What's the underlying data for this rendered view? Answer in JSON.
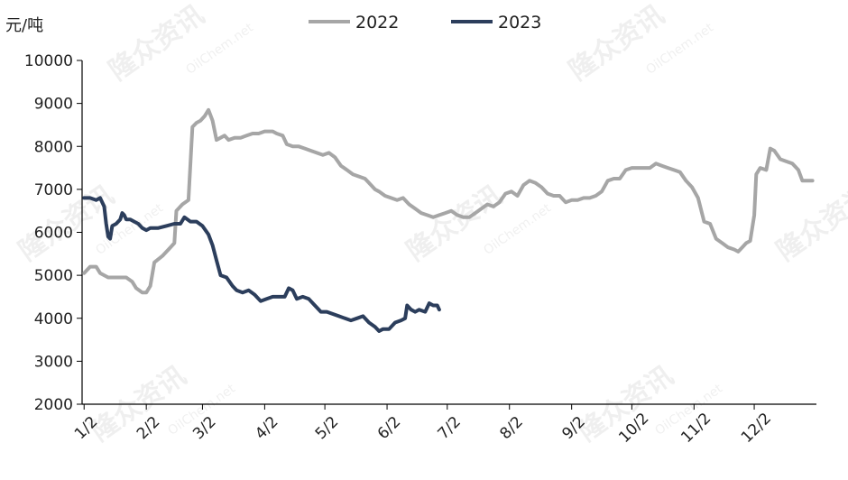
{
  "chart_data": {
    "type": "line",
    "ylabel": "元/吨",
    "ylim": [
      2000,
      10000
    ],
    "yticks": [
      2000,
      3000,
      4000,
      5000,
      6000,
      7000,
      8000,
      9000,
      10000
    ],
    "xlim": [
      0,
      366
    ],
    "xticks": [
      {
        "label": "1/2",
        "day": 1
      },
      {
        "label": "2/2",
        "day": 32
      },
      {
        "label": "3/2",
        "day": 60
      },
      {
        "label": "4/2",
        "day": 91
      },
      {
        "label": "5/2",
        "day": 121
      },
      {
        "label": "6/2",
        "day": 152
      },
      {
        "label": "7/2",
        "day": 182
      },
      {
        "label": "8/2",
        "day": 213
      },
      {
        "label": "9/2",
        "day": 244
      },
      {
        "label": "10/2",
        "day": 274
      },
      {
        "label": "11/2",
        "day": 305
      },
      {
        "label": "12/2",
        "day": 335
      }
    ],
    "legend_position": "top",
    "grid": false,
    "watermark": "隆众资讯",
    "watermark_sub": "OilChem.net",
    "series": [
      {
        "name": "2022",
        "color": "#a6a6a6",
        "points": [
          [
            1,
            5050
          ],
          [
            4,
            5200
          ],
          [
            7,
            5200
          ],
          [
            9,
            5050
          ],
          [
            13,
            4950
          ],
          [
            18,
            4950
          ],
          [
            22,
            4950
          ],
          [
            25,
            4850
          ],
          [
            27,
            4700
          ],
          [
            30,
            4600
          ],
          [
            32,
            4600
          ],
          [
            34,
            4750
          ],
          [
            36,
            5300
          ],
          [
            40,
            5450
          ],
          [
            44,
            5650
          ],
          [
            46,
            5750
          ],
          [
            47,
            6500
          ],
          [
            50,
            6650
          ],
          [
            53,
            6750
          ],
          [
            55,
            8450
          ],
          [
            57,
            8550
          ],
          [
            59,
            8600
          ],
          [
            61,
            8700
          ],
          [
            63,
            8850
          ],
          [
            65,
            8600
          ],
          [
            67,
            8150
          ],
          [
            69,
            8200
          ],
          [
            71,
            8250
          ],
          [
            73,
            8150
          ],
          [
            76,
            8200
          ],
          [
            79,
            8200
          ],
          [
            82,
            8250
          ],
          [
            85,
            8300
          ],
          [
            88,
            8300
          ],
          [
            91,
            8350
          ],
          [
            95,
            8350
          ],
          [
            97,
            8300
          ],
          [
            100,
            8250
          ],
          [
            102,
            8050
          ],
          [
            105,
            8000
          ],
          [
            108,
            8000
          ],
          [
            111,
            7950
          ],
          [
            114,
            7900
          ],
          [
            117,
            7850
          ],
          [
            120,
            7800
          ],
          [
            123,
            7850
          ],
          [
            126,
            7750
          ],
          [
            129,
            7550
          ],
          [
            132,
            7450
          ],
          [
            135,
            7350
          ],
          [
            138,
            7300
          ],
          [
            141,
            7250
          ],
          [
            144,
            7100
          ],
          [
            146,
            7000
          ],
          [
            148,
            6950
          ],
          [
            151,
            6850
          ],
          [
            154,
            6800
          ],
          [
            157,
            6750
          ],
          [
            160,
            6800
          ],
          [
            163,
            6650
          ],
          [
            166,
            6550
          ],
          [
            169,
            6450
          ],
          [
            172,
            6400
          ],
          [
            175,
            6350
          ],
          [
            178,
            6400
          ],
          [
            181,
            6450
          ],
          [
            184,
            6500
          ],
          [
            187,
            6400
          ],
          [
            190,
            6350
          ],
          [
            193,
            6350
          ],
          [
            196,
            6450
          ],
          [
            199,
            6550
          ],
          [
            202,
            6650
          ],
          [
            205,
            6600
          ],
          [
            208,
            6700
          ],
          [
            211,
            6900
          ],
          [
            214,
            6950
          ],
          [
            217,
            6850
          ],
          [
            220,
            7100
          ],
          [
            223,
            7200
          ],
          [
            226,
            7150
          ],
          [
            229,
            7050
          ],
          [
            232,
            6900
          ],
          [
            235,
            6850
          ],
          [
            238,
            6850
          ],
          [
            241,
            6700
          ],
          [
            244,
            6750
          ],
          [
            247,
            6750
          ],
          [
            250,
            6800
          ],
          [
            253,
            6800
          ],
          [
            256,
            6850
          ],
          [
            259,
            6950
          ],
          [
            262,
            7200
          ],
          [
            265,
            7250
          ],
          [
            268,
            7250
          ],
          [
            271,
            7450
          ],
          [
            274,
            7500
          ],
          [
            277,
            7500
          ],
          [
            280,
            7500
          ],
          [
            283,
            7500
          ],
          [
            286,
            7600
          ],
          [
            289,
            7550
          ],
          [
            292,
            7500
          ],
          [
            295,
            7450
          ],
          [
            298,
            7400
          ],
          [
            301,
            7200
          ],
          [
            304,
            7050
          ],
          [
            307,
            6800
          ],
          [
            310,
            6250
          ],
          [
            313,
            6200
          ],
          [
            316,
            5850
          ],
          [
            319,
            5750
          ],
          [
            322,
            5650
          ],
          [
            325,
            5600
          ],
          [
            327,
            5550
          ],
          [
            329,
            5650
          ],
          [
            331,
            5750
          ],
          [
            333,
            5800
          ],
          [
            335,
            6400
          ],
          [
            336,
            7350
          ],
          [
            338,
            7500
          ],
          [
            341,
            7450
          ],
          [
            343,
            7950
          ],
          [
            345,
            7900
          ],
          [
            348,
            7700
          ],
          [
            351,
            7650
          ],
          [
            354,
            7600
          ],
          [
            357,
            7450
          ],
          [
            359,
            7200
          ],
          [
            362,
            7200
          ],
          [
            364,
            7200
          ]
        ]
      },
      {
        "name": "2023",
        "color": "#2c3e5c",
        "points": [
          [
            1,
            6800
          ],
          [
            4,
            6800
          ],
          [
            7,
            6750
          ],
          [
            9,
            6800
          ],
          [
            11,
            6600
          ],
          [
            12,
            6200
          ],
          [
            13,
            5900
          ],
          [
            14,
            5850
          ],
          [
            15,
            6150
          ],
          [
            17,
            6200
          ],
          [
            19,
            6300
          ],
          [
            20,
            6450
          ],
          [
            21,
            6400
          ],
          [
            22,
            6300
          ],
          [
            24,
            6300
          ],
          [
            26,
            6250
          ],
          [
            28,
            6200
          ],
          [
            30,
            6100
          ],
          [
            32,
            6050
          ],
          [
            34,
            6100
          ],
          [
            38,
            6100
          ],
          [
            42,
            6150
          ],
          [
            46,
            6200
          ],
          [
            49,
            6200
          ],
          [
            51,
            6350
          ],
          [
            54,
            6250
          ],
          [
            57,
            6250
          ],
          [
            60,
            6150
          ],
          [
            63,
            5950
          ],
          [
            65,
            5700
          ],
          [
            67,
            5350
          ],
          [
            69,
            5000
          ],
          [
            72,
            4950
          ],
          [
            75,
            4750
          ],
          [
            77,
            4650
          ],
          [
            80,
            4600
          ],
          [
            83,
            4650
          ],
          [
            86,
            4550
          ],
          [
            89,
            4400
          ],
          [
            92,
            4450
          ],
          [
            95,
            4500
          ],
          [
            98,
            4500
          ],
          [
            101,
            4500
          ],
          [
            103,
            4700
          ],
          [
            105,
            4650
          ],
          [
            107,
            4450
          ],
          [
            110,
            4500
          ],
          [
            113,
            4450
          ],
          [
            116,
            4300
          ],
          [
            119,
            4150
          ],
          [
            122,
            4150
          ],
          [
            125,
            4100
          ],
          [
            128,
            4050
          ],
          [
            131,
            4000
          ],
          [
            134,
            3950
          ],
          [
            137,
            4000
          ],
          [
            140,
            4050
          ],
          [
            143,
            3900
          ],
          [
            146,
            3800
          ],
          [
            148,
            3700
          ],
          [
            150,
            3750
          ],
          [
            153,
            3750
          ],
          [
            156,
            3900
          ],
          [
            159,
            3950
          ],
          [
            161,
            4000
          ],
          [
            162,
            4300
          ],
          [
            164,
            4200
          ],
          [
            166,
            4150
          ],
          [
            168,
            4200
          ],
          [
            171,
            4150
          ],
          [
            173,
            4350
          ],
          [
            175,
            4300
          ],
          [
            177,
            4300
          ],
          [
            178,
            4200
          ]
        ]
      }
    ]
  }
}
